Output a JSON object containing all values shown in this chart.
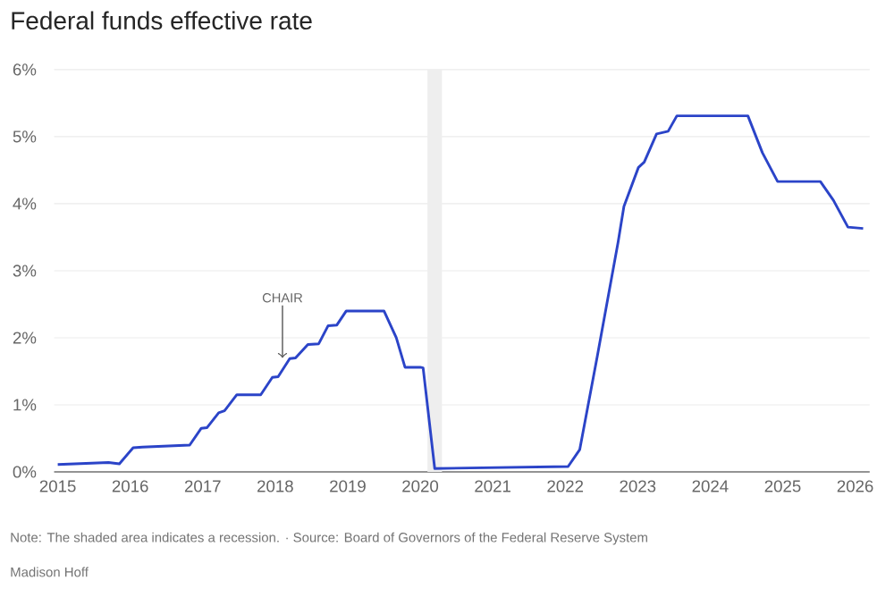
{
  "chart_data": {
    "type": "line",
    "title": "Federal funds effective rate",
    "x": [
      2015.0,
      2015.7,
      2015.85,
      2016.04,
      2016.17,
      2016.82,
      2016.98,
      2017.06,
      2017.22,
      2017.3,
      2017.47,
      2017.8,
      2017.96,
      2018.04,
      2018.2,
      2018.28,
      2018.45,
      2018.6,
      2018.73,
      2018.85,
      2018.98,
      2019.5,
      2019.67,
      2019.79,
      2020.0,
      2020.04,
      2020.2,
      2022.04,
      2022.2,
      2022.44,
      2022.73,
      2022.81,
      2023.01,
      2023.09,
      2023.26,
      2023.42,
      2023.54,
      2024.52,
      2024.72,
      2024.93,
      2025.52,
      2025.7,
      2025.9,
      2026.11
    ],
    "series": [
      {
        "color": "#2b44c8",
        "values": [
          0.11,
          0.14,
          0.12,
          0.36,
          0.37,
          0.4,
          0.65,
          0.66,
          0.88,
          0.91,
          1.15,
          1.15,
          1.41,
          1.42,
          1.69,
          1.7,
          1.9,
          1.91,
          2.18,
          2.19,
          2.4,
          2.4,
          2.0,
          1.56,
          1.56,
          1.55,
          0.05,
          0.08,
          0.33,
          1.71,
          3.43,
          3.96,
          4.54,
          4.62,
          5.04,
          5.08,
          5.31,
          5.31,
          4.76,
          4.33,
          4.33,
          4.05,
          3.65,
          3.63
        ]
      }
    ],
    "xlim": [
      2014.95,
      2026.2
    ],
    "xticks": [
      2015,
      2016,
      2017,
      2018,
      2019,
      2020,
      2021,
      2022,
      2023,
      2024,
      2025,
      2026
    ],
    "ylim": [
      0,
      6
    ],
    "yticks": [
      {
        "value": 0,
        "label": "0%"
      },
      {
        "value": 1,
        "label": "1%"
      },
      {
        "value": 2,
        "label": "2%"
      },
      {
        "value": 3,
        "label": "3%"
      },
      {
        "value": 4,
        "label": "4%"
      },
      {
        "value": 5,
        "label": "5%"
      },
      {
        "value": 6,
        "label": "6%"
      }
    ],
    "grid": "y",
    "marker": "none",
    "line_style": "solid",
    "bands": [
      {
        "axis": "x",
        "from": 2020.1,
        "to": 2020.3,
        "color": "#eeeeee"
      }
    ],
    "annotations": [
      {
        "text": "CHAIR",
        "x": 2018.1,
        "y": 1.7
      },
      "Note: The shaded area indicates a recession. · Source: Board of Governors of the Federal Reserve System",
      "Madison Hoff"
    ]
  }
}
